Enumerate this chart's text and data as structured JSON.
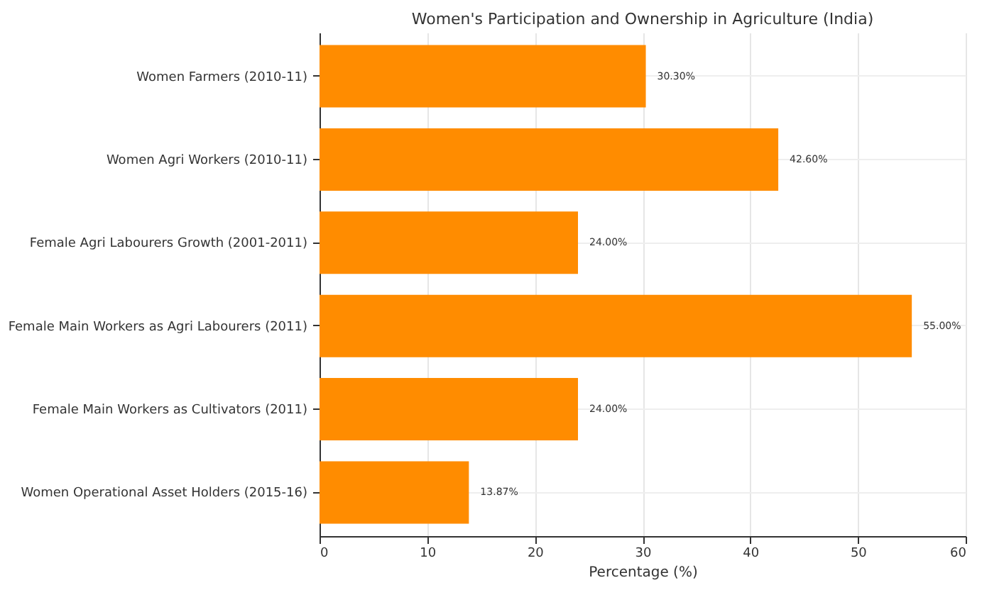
{
  "chart_data": {
    "type": "bar",
    "orientation": "horizontal",
    "title": "Women's Participation and Ownership in Agriculture (India)",
    "xlabel": "Percentage (%)",
    "categories": [
      "Women Farmers (2010-11)",
      "Women Agri Workers (2010-11)",
      "Female Agri Labourers Growth (2001-2011)",
      "Female Main Workers as Agri Labourers (2011)",
      "Female Main Workers as Cultivators (2011)",
      "Women Operational Asset Holders (2015-16)"
    ],
    "values": [
      30.3,
      42.6,
      24.0,
      55.0,
      24.0,
      13.87
    ],
    "value_labels": [
      "30.30%",
      "42.60%",
      "24.00%",
      "55.00%",
      "24.00%",
      "13.87%"
    ],
    "color": "#ff8c00",
    "xlim": [
      0,
      60
    ],
    "xticks": [
      0,
      10,
      20,
      30,
      40,
      50,
      60
    ],
    "grid": true
  }
}
